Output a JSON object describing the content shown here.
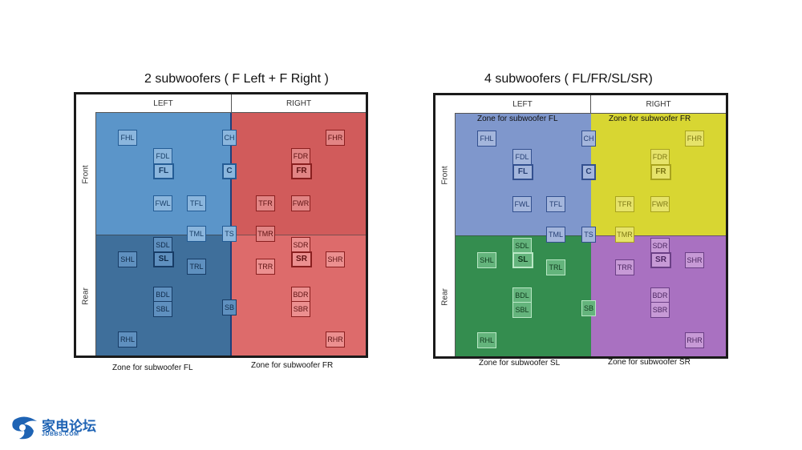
{
  "diagram1": {
    "title": "2 subwoofers ( F Left + F Right )",
    "header_left": "LEFT",
    "header_right": "RIGHT",
    "side_front": "Front",
    "side_rear": "Rear",
    "zone_label_left": "Zone for subwoofer FL",
    "zone_label_right": "Zone for subwoofer FR",
    "colors": {
      "left_zone": "#5b95c9",
      "left_rear": "#3a6b97",
      "right_zone": "#d45a5a"
    }
  },
  "diagram2": {
    "title": "4 subwoofers ( FL/FR/SL/SR)",
    "header_left": "LEFT",
    "header_right": "RIGHT",
    "side_front": "Front",
    "side_rear": "Rear",
    "zone_fl": "Zone for subwoofer FL",
    "zone_fr": "Zone for subwoofer FR",
    "zone_sl": "Zone for subwoofer SL",
    "zone_sr": "Zone for subwoofer SR",
    "colors": {
      "fl": "#7d97cd",
      "fr": "#d7d630",
      "sl": "#2f8a4c",
      "sr": "#a76fc0"
    }
  },
  "speakers": {
    "FHL": "FHL",
    "FDL": "FDL",
    "FL": "FL",
    "CH": "CH",
    "C": "C",
    "FDR": "FDR",
    "FR": "FR",
    "FHR": "FHR",
    "FWL": "FWL",
    "TFL": "TFL",
    "TFR": "TFR",
    "FWR": "FWR",
    "TML": "TML",
    "TS": "TS",
    "TMR": "TMR",
    "SDL": "SDL",
    "SL": "SL",
    "SHL": "SHL",
    "TRL": "TRL",
    "SDR": "SDR",
    "SR": "SR",
    "SHR": "SHR",
    "TRR": "TRR",
    "BDL": "BDL",
    "SBL": "SBL",
    "SB": "SB",
    "BDR": "BDR",
    "SBR": "SBR",
    "RHL": "RHL",
    "RHR": "RHR"
  },
  "logo": {
    "name": "家电论坛",
    "sub": "JDBBS.COM"
  }
}
